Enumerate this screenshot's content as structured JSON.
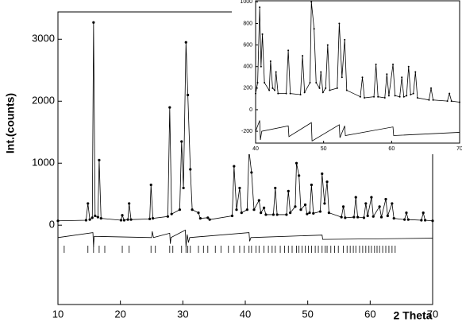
{
  "chart_data": [
    {
      "type": "line",
      "xlabel": "2 Theta",
      "ylabel": "Int.(counts)",
      "xlim": [
        10,
        70
      ],
      "ylim": [
        -1280,
        3440
      ],
      "xticks": [
        10,
        20,
        30,
        40,
        50,
        60,
        70
      ],
      "yticks": [
        0,
        1000,
        2000,
        3000
      ],
      "series": [
        {
          "color": "#000000",
          "markers": true,
          "x": [
            10,
            14.5,
            14.8,
            15.1,
            15.5,
            15.7,
            15.95,
            16.4,
            16.6,
            16.9,
            20.1,
            20.3,
            20.6,
            21.2,
            21.4,
            21.7,
            24.7,
            24.9,
            25.2,
            27.6,
            27.9,
            28.2,
            29.5,
            29.8,
            30.1,
            30.5,
            30.8,
            31.2,
            31.5,
            32.5,
            32.8,
            34,
            34.3,
            37.9,
            38.2,
            38.6,
            39.1,
            39.4,
            40.3,
            40.6,
            41.0,
            41.4,
            42.2,
            42.5,
            43,
            43.3,
            44.5,
            44.8,
            45.1,
            46.6,
            46.9,
            47.2,
            48.0,
            48.2,
            48.6,
            48.9,
            49.6,
            49.9,
            50.3,
            50.6,
            50.9,
            52.0,
            52.3,
            52.7,
            53.1,
            53.4,
            55.4,
            55.7,
            56.0,
            57.4,
            57.7,
            58.0,
            59.0,
            59.3,
            59.6,
            60.2,
            60.5,
            61.5,
            61.8,
            62.5,
            62.8,
            63.5,
            63.8,
            65.5,
            65.8,
            66.1,
            68.2,
            68.5,
            68.8,
            70
          ],
          "values": [
            70,
            80,
            350,
            90,
            120,
            3270,
            150,
            130,
            1050,
            110,
            80,
            160,
            80,
            90,
            350,
            90,
            100,
            650,
            110,
            140,
            1900,
            180,
            250,
            1350,
            600,
            2950,
            2100,
            900,
            250,
            200,
            110,
            120,
            90,
            150,
            950,
            250,
            600,
            200,
            250,
            1200,
            850,
            250,
            400,
            200,
            280,
            170,
            170,
            600,
            170,
            170,
            550,
            200,
            300,
            1000,
            800,
            250,
            330,
            180,
            200,
            650,
            190,
            220,
            830,
            350,
            700,
            200,
            130,
            300,
            120,
            130,
            450,
            130,
            120,
            350,
            150,
            450,
            140,
            300,
            130,
            420,
            150,
            350,
            110,
            90,
            200,
            90,
            80,
            200,
            80,
            70
          ]
        },
        {
          "color": "#000000",
          "markers": false,
          "x": [
            10,
            15.6,
            15.7,
            15.8,
            25,
            25.1,
            25.3,
            27.9,
            28.0,
            28.1,
            30.4,
            30.5,
            30.7,
            30.9,
            31.1,
            40.6,
            40.7,
            40.9,
            52.3,
            52.4,
            70
          ],
          "values": [
            -200,
            -120,
            -350,
            -180,
            -200,
            -100,
            -200,
            -130,
            -300,
            -200,
            -80,
            -350,
            -150,
            -280,
            -200,
            -120,
            -260,
            -200,
            -160,
            -230,
            -210
          ]
        }
      ],
      "reflections": [
        11,
        14.8,
        15.7,
        16.6,
        17.5,
        20.3,
        21.4,
        24.9,
        25.6,
        27.9,
        28.4,
        29.8,
        30.5,
        30.8,
        31.2,
        32.5,
        33.3,
        34,
        35.2,
        36.1,
        37.3,
        38.2,
        39.1,
        39.8,
        40.6,
        41,
        41.7,
        42.2,
        43,
        43.7,
        44.3,
        44.8,
        45.6,
        46.3,
        46.9,
        47.5,
        48.2,
        48.6,
        49.1,
        49.6,
        50.1,
        50.6,
        51.2,
        51.7,
        52.3,
        52.8,
        53.1,
        53.7,
        54.3,
        54.9,
        55.7,
        56.3,
        56.8,
        57.3,
        57.7,
        58.3,
        58.8,
        59.3,
        59.8,
        60.2,
        60.7,
        61.1,
        61.5,
        62,
        62.5,
        63,
        63.5,
        64
      ]
    },
    {
      "type": "line",
      "xlim": [
        40,
        70
      ],
      "ylim": [
        -310,
        1010
      ],
      "xticks": [
        40,
        50,
        60,
        70
      ],
      "yticks": [
        -200,
        0,
        200,
        400,
        600,
        800,
        1000
      ],
      "series": [
        {
          "color": "#000000",
          "markers": true,
          "x": [
            40,
            40.3,
            40.6,
            40.8,
            41,
            41.3,
            42,
            42.2,
            42.5,
            42.8,
            43,
            43.3,
            44.5,
            44.8,
            45.1,
            46.6,
            46.9,
            47.2,
            48,
            48.2,
            48.6,
            48.9,
            49.4,
            49.6,
            49.9,
            50.3,
            50.6,
            50.9,
            52,
            52.3,
            52.7,
            53.1,
            53.4,
            55.4,
            55.7,
            56,
            57.4,
            57.7,
            58,
            59,
            59.3,
            59.6,
            60.2,
            60.5,
            61.2,
            61.5,
            61.8,
            62.2,
            62.5,
            62.8,
            63.2,
            63.5,
            63.8,
            65.5,
            65.8,
            66.1,
            68.2,
            68.5,
            68.8,
            70
          ],
          "values": [
            150,
            250,
            950,
            400,
            700,
            250,
            180,
            450,
            200,
            180,
            350,
            150,
            150,
            550,
            150,
            140,
            500,
            160,
            250,
            1000,
            750,
            250,
            200,
            350,
            160,
            200,
            600,
            180,
            200,
            800,
            300,
            650,
            180,
            120,
            300,
            110,
            120,
            420,
            120,
            110,
            330,
            130,
            420,
            130,
            120,
            300,
            120,
            130,
            400,
            140,
            150,
            350,
            110,
            90,
            200,
            90,
            80,
            150,
            80,
            70
          ]
        },
        {
          "color": "#000000",
          "markers": false,
          "x": [
            40,
            40.6,
            40.7,
            40.9,
            44.8,
            44.9,
            48.2,
            48.3,
            52.3,
            52.4,
            53.1,
            53.2,
            60.2,
            60.3,
            70
          ],
          "values": [
            -200,
            -100,
            -280,
            -200,
            -150,
            -250,
            -120,
            -290,
            -140,
            -260,
            -150,
            -240,
            -160,
            -240,
            -210
          ]
        }
      ]
    }
  ]
}
